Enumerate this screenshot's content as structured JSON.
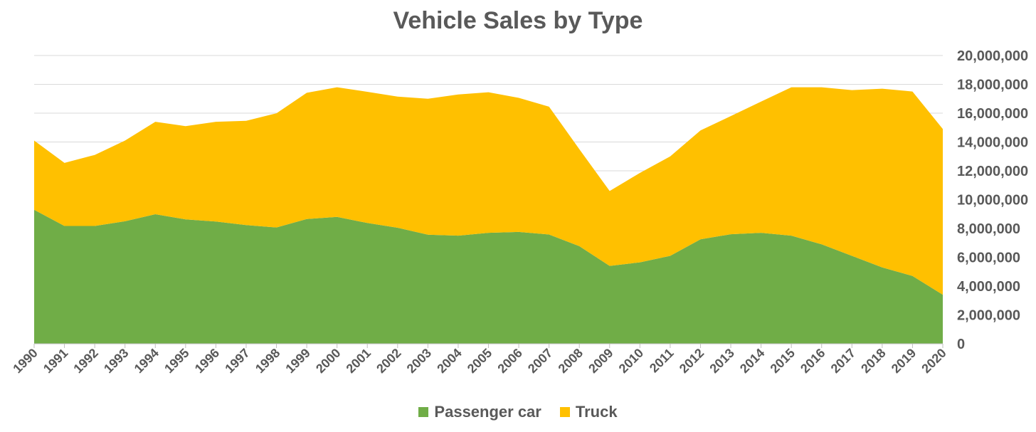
{
  "chart_data": {
    "type": "area",
    "stacked": true,
    "title": "Vehicle Sales by Type",
    "x": [
      "1990",
      "1991",
      "1992",
      "1993",
      "1994",
      "1995",
      "1996",
      "1997",
      "1998",
      "1999",
      "2000",
      "2001",
      "2002",
      "2003",
      "2004",
      "2005",
      "2006",
      "2007",
      "2008",
      "2009",
      "2010",
      "2011",
      "2012",
      "2013",
      "2014",
      "2015",
      "2016",
      "2017",
      "2018",
      "2019",
      "2020"
    ],
    "series": [
      {
        "name": "Passenger car",
        "color": "#70AD47",
        "values": [
          9300000,
          8175000,
          8175000,
          8500000,
          8990000,
          8630000,
          8480000,
          8230000,
          8070000,
          8650000,
          8800000,
          8380000,
          8050000,
          7570000,
          7500000,
          7700000,
          7760000,
          7580000,
          6770000,
          5400000,
          5650000,
          6100000,
          7250000,
          7600000,
          7700000,
          7500000,
          6900000,
          6100000,
          5300000,
          4700000,
          3400000
        ]
      },
      {
        "name": "Truck",
        "color": "#FFC000",
        "values": [
          4800000,
          4375000,
          4925000,
          5600000,
          6410000,
          6470000,
          6920000,
          7240000,
          7920000,
          8760000,
          9000000,
          9100000,
          9100000,
          9430000,
          9800000,
          9750000,
          9300000,
          8870000,
          6730000,
          5200000,
          6200000,
          6900000,
          7550000,
          8200000,
          9100000,
          10300000,
          10900000,
          11500000,
          12400000,
          12800000,
          11500000
        ]
      }
    ],
    "y_ticks": [
      "0",
      "2,000,000",
      "4,000,000",
      "6,000,000",
      "8,000,000",
      "10,000,000",
      "12,000,000",
      "14,000,000",
      "16,000,000",
      "18,000,000",
      "20,000,000"
    ],
    "ylim": [
      0,
      20000000
    ],
    "y_axis_side": "right",
    "grid": true,
    "legend_position": "bottom"
  }
}
